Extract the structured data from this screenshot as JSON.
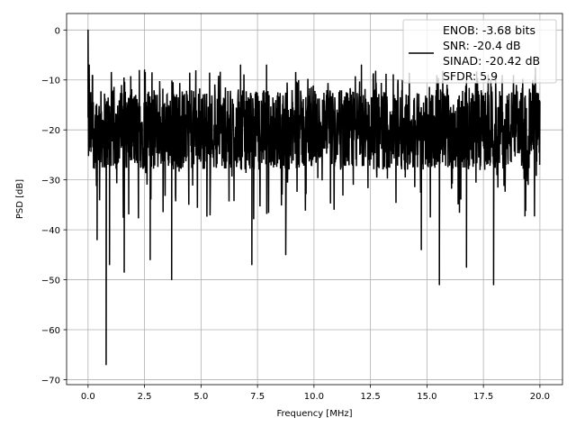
{
  "chart_data": {
    "type": "line",
    "title": "",
    "xlabel": "Frequency [MHz]",
    "ylabel": "PSD [dB]",
    "xlim": [
      -0.95,
      21.0
    ],
    "ylim": [
      -71.0,
      3.3
    ],
    "xticks": [
      0.0,
      2.5,
      5.0,
      7.5,
      10.0,
      12.5,
      15.0,
      17.5,
      20.0
    ],
    "xtick_labels": [
      "0.0",
      "2.5",
      "5.0",
      "7.5",
      "10.0",
      "12.5",
      "15.0",
      "17.5",
      "20.0"
    ],
    "yticks": [
      0,
      -10,
      -20,
      -30,
      -40,
      -50,
      -60,
      -70
    ],
    "ytick_labels": [
      "0",
      "−10",
      "−20",
      "−30",
      "−40",
      "−50",
      "−60",
      "−70"
    ],
    "grid": true,
    "legend_placement": "upper-right",
    "legend_entries": [
      "ENOB: -3.68 bits",
      "SNR: -20.4 dB",
      "SINAD: -20.42 dB",
      "SFDR: 5.9"
    ],
    "series_color": "#000000",
    "noise_band_db": [
      -28,
      -12
    ],
    "notable_points": [
      [
        0.0,
        0.0
      ],
      [
        0.05,
        -7.0
      ],
      [
        0.4,
        -42.0
      ],
      [
        0.8,
        -67.0
      ],
      [
        0.95,
        -47.0
      ],
      [
        1.6,
        -48.5
      ],
      [
        2.5,
        -8.0
      ],
      [
        2.75,
        -46.0
      ],
      [
        3.7,
        -50.0
      ],
      [
        6.75,
        -7.0
      ],
      [
        7.25,
        -47.0
      ],
      [
        7.9,
        -7.0
      ],
      [
        8.75,
        -45.0
      ],
      [
        12.1,
        -7.0
      ],
      [
        14.75,
        -44.0
      ],
      [
        15.55,
        -51.0
      ],
      [
        16.75,
        -47.5
      ],
      [
        17.95,
        -51.0
      ],
      [
        19.8,
        -7.5
      ]
    ]
  }
}
